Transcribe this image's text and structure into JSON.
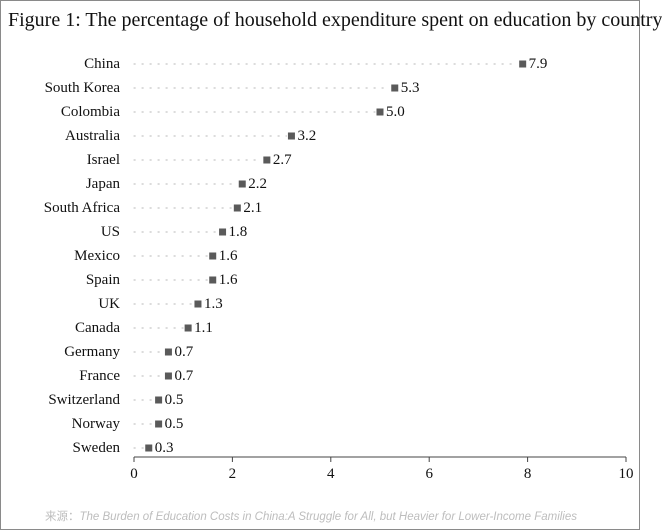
{
  "chart_data": {
    "type": "scatter",
    "orientation": "horizontal",
    "title": "Figure 1: The percentage of household expenditure spent on education by country",
    "categories": [
      "China",
      "South Korea",
      "Colombia",
      "Australia",
      "Israel",
      "Japan",
      "South Africa",
      "US",
      "Mexico",
      "Spain",
      "UK",
      "Canada",
      "Germany",
      "France",
      "Switzerland",
      "Norway",
      "Sweden"
    ],
    "values": [
      7.9,
      5.3,
      5.0,
      3.2,
      2.7,
      2.2,
      2.1,
      1.8,
      1.6,
      1.6,
      1.3,
      1.1,
      0.7,
      0.7,
      0.5,
      0.5,
      0.3
    ],
    "value_labels": [
      "7.9",
      "5.3",
      "5.0",
      "3.2",
      "2.7",
      "2.2",
      "2.1",
      "1.8",
      "1.6",
      "1.6",
      "1.3",
      "1.1",
      "0.7",
      "0.7",
      "0.5",
      "0.5",
      "0.3"
    ],
    "xlim": [
      0,
      10
    ],
    "xticks": [
      0,
      2,
      4,
      6,
      8,
      10
    ],
    "xtick_labels": [
      "0",
      "2",
      "4",
      "6",
      "8",
      "10"
    ],
    "grid": false,
    "leader_lines": "dotted",
    "marker": "square",
    "marker_color": "#5a5a5a"
  },
  "source": {
    "prefix": "来源：",
    "text": "The Burden of Education Costs in China:A Struggle for All, but Heavier for Lower-Income Families"
  }
}
